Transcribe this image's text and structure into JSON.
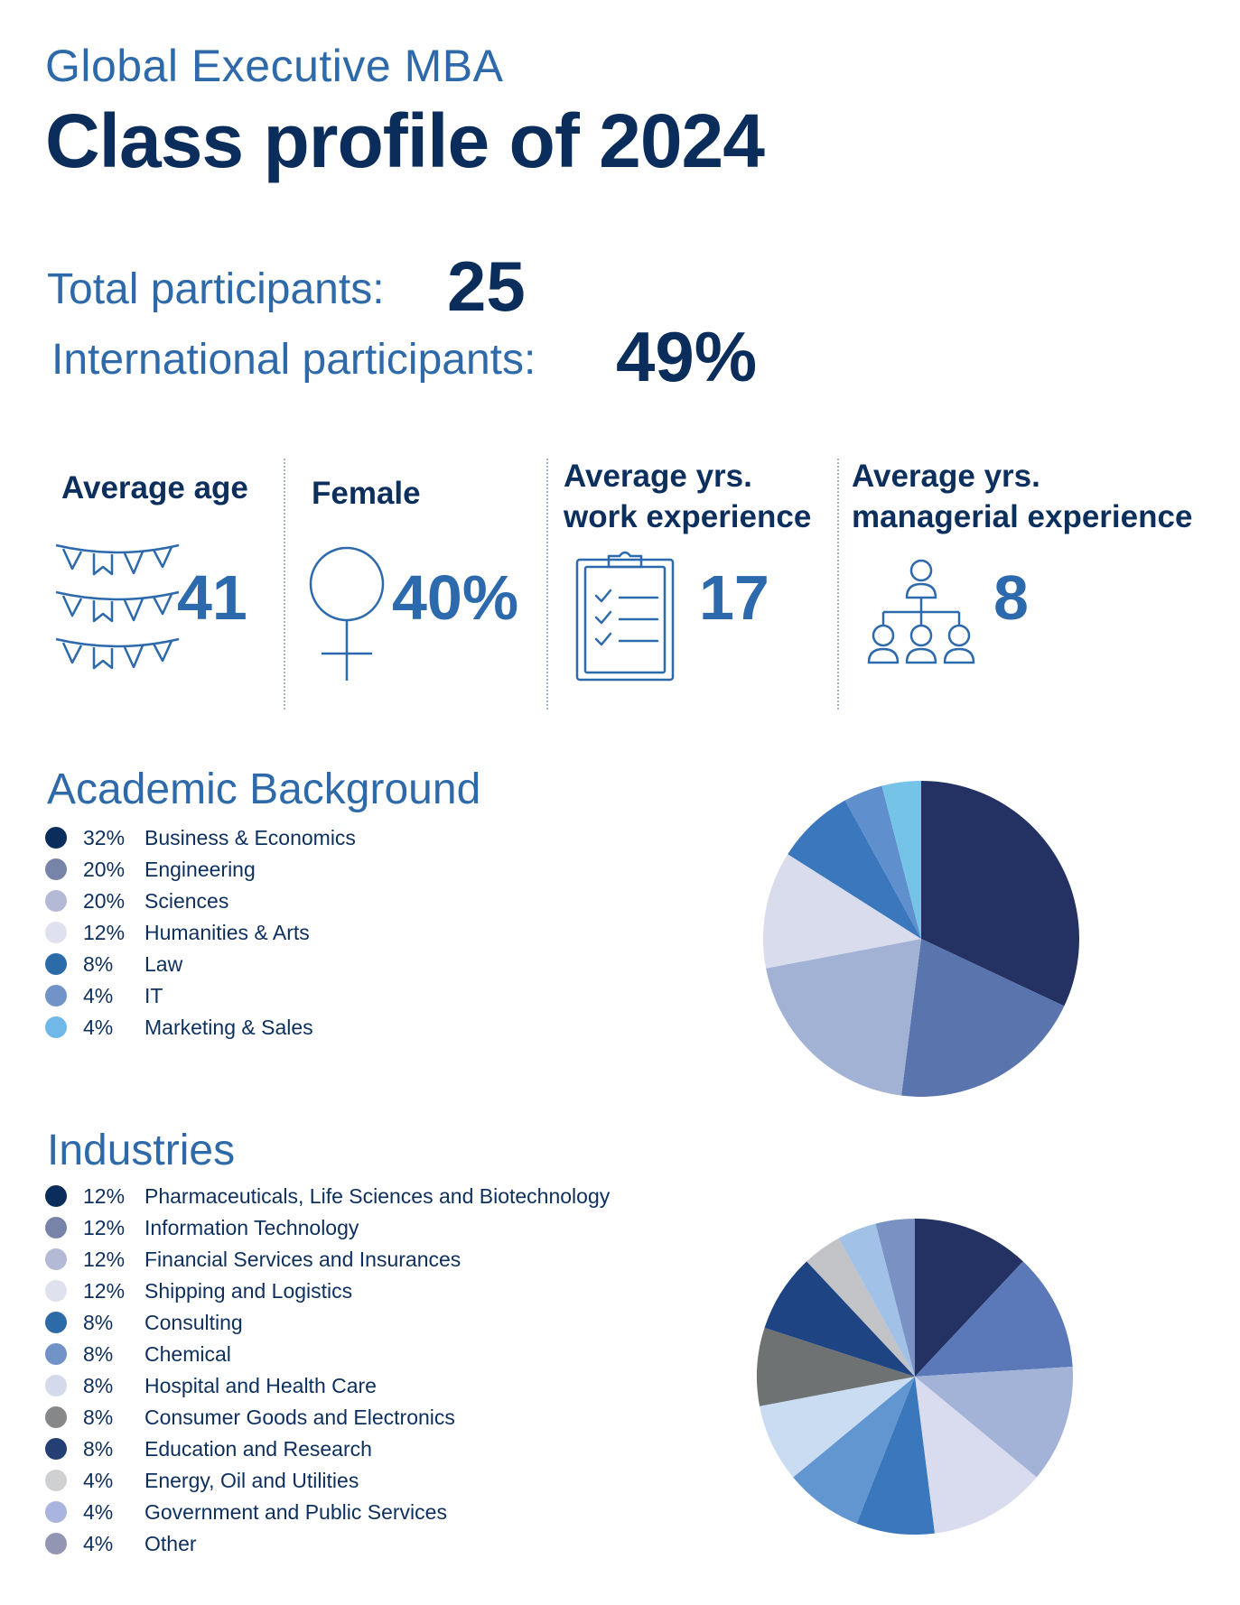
{
  "header": {
    "subtitle": "Global Executive MBA",
    "title": "Class profile of 2024"
  },
  "summary": {
    "total_label": "Total participants:",
    "total_value": "25",
    "international_label": "International participants:",
    "international_value": "49%"
  },
  "stats": [
    {
      "label_line1": "Average age",
      "label_line2": "",
      "value": "41",
      "icon": "bunting-icon"
    },
    {
      "label_line1": "Female",
      "label_line2": "",
      "value": "40%",
      "icon": "female-symbol-icon"
    },
    {
      "label_line1": "Average yrs.",
      "label_line2": "work experience",
      "value": "17",
      "icon": "clipboard-checklist-icon"
    },
    {
      "label_line1": "Average yrs.",
      "label_line2": "managerial experience",
      "value": "8",
      "icon": "org-chart-icon"
    }
  ],
  "colors": {
    "title": "#0b2d5c",
    "accent": "#2e6aa9",
    "stat_value": "#2c69ad"
  },
  "chart_data": [
    {
      "type": "pie",
      "title": "Academic Background",
      "categories": [
        "Business & Economics",
        "Engineering",
        "Sciences",
        "Humanities & Arts",
        "Law",
        "IT",
        "Marketing & Sales"
      ],
      "values": [
        32,
        20,
        20,
        12,
        8,
        4,
        4
      ],
      "labels": [
        "32%",
        "20%",
        "20%",
        "12%",
        "8%",
        "4%",
        "4%"
      ],
      "legend_colors": [
        "#0b2d5c",
        "#7784a8",
        "#b4b9d6",
        "#dfe1ee",
        "#2c6aa8",
        "#7193c8",
        "#6fb8e7"
      ],
      "slice_colors": [
        "#233262",
        "#5a74ad",
        "#a1b2d5",
        "#d8dced",
        "#3b77bd",
        "#5f8fcc",
        "#76c3e8"
      ],
      "legend": "left"
    },
    {
      "type": "pie",
      "title": "Industries",
      "categories": [
        "Pharmaceuticals, Life Sciences and Biotechnology",
        "Information Technology",
        "Financial Services and Insurances",
        "Shipping and Logistics",
        "Consulting",
        "Chemical",
        "Hospital and Health Care",
        "Consumer Goods and Electronics",
        "Education and Research",
        "Energy, Oil and Utilities",
        "Government and Public Services",
        "Other"
      ],
      "values": [
        12,
        12,
        12,
        12,
        8,
        8,
        8,
        8,
        8,
        4,
        4,
        4
      ],
      "labels": [
        "12%",
        "12%",
        "12%",
        "12%",
        "8%",
        "8%",
        "8%",
        "8%",
        "8%",
        "4%",
        "4%",
        "4%"
      ],
      "legend_colors": [
        "#0b2d5c",
        "#7784a8",
        "#b4b9d6",
        "#dfe1ee",
        "#2c6aa8",
        "#7193c8",
        "#d4d9ec",
        "#858789",
        "#233f73",
        "#cfd0d2",
        "#a9b5de",
        "#9396b3"
      ],
      "slice_colors": [
        "#233262",
        "#5b79b9",
        "#a3b3d8",
        "#d9dcef",
        "#3b77bd",
        "#6196d0",
        "#c9dcf1",
        "#6e7273",
        "#1f4484",
        "#c2c3c6",
        "#a2c1e6",
        "#7a92c3"
      ],
      "legend": "left"
    }
  ]
}
